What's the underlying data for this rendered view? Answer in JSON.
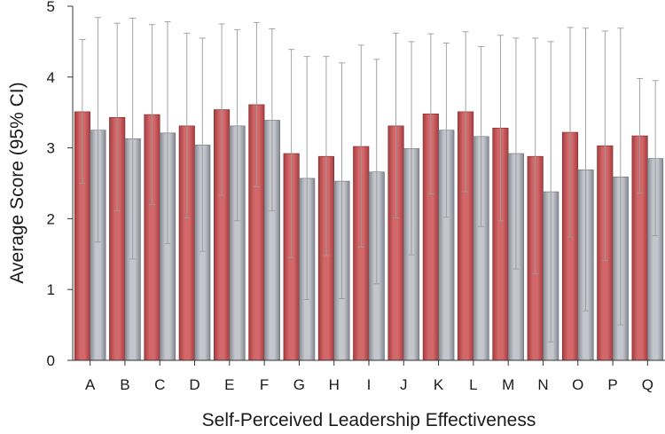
{
  "chart_data": {
    "type": "bar",
    "title": "",
    "xlabel": "Self-Perceived Leadership Effectiveness",
    "ylabel": "Average Score (95% CI)",
    "ylim": [
      0,
      5
    ],
    "yticks": [
      0,
      1,
      2,
      3,
      4,
      5
    ],
    "grid": false,
    "legend": "none",
    "error_bars": "95% CI",
    "categories": [
      "A",
      "B",
      "C",
      "D",
      "E",
      "F",
      "G",
      "H",
      "I",
      "J",
      "K",
      "L",
      "M",
      "N",
      "O",
      "P",
      "Q"
    ],
    "series": [
      {
        "color": "#c9585a",
        "values": [
          3.51,
          3.43,
          3.47,
          3.31,
          3.54,
          3.61,
          2.92,
          2.88,
          3.02,
          3.31,
          3.48,
          3.51,
          3.28,
          2.88,
          3.22,
          3.03,
          3.17
        ],
        "ci_low": [
          2.5,
          2.11,
          2.2,
          2.01,
          2.33,
          2.45,
          1.45,
          1.48,
          1.6,
          2.01,
          2.35,
          2.38,
          1.97,
          1.22,
          1.74,
          1.41,
          2.36
        ],
        "ci_high": [
          4.53,
          4.76,
          4.74,
          4.62,
          4.75,
          4.77,
          4.39,
          4.29,
          4.45,
          4.62,
          4.61,
          4.64,
          4.59,
          4.55,
          4.7,
          4.65,
          3.98
        ]
      },
      {
        "color": "#a7aab0",
        "values": [
          3.25,
          3.13,
          3.21,
          3.04,
          3.31,
          3.39,
          2.57,
          2.53,
          2.66,
          2.99,
          3.25,
          3.16,
          2.92,
          2.38,
          2.69,
          2.59,
          2.85
        ],
        "ci_low": [
          1.67,
          1.43,
          1.65,
          1.54,
          1.97,
          2.11,
          0.86,
          0.87,
          1.08,
          1.49,
          2.02,
          1.89,
          1.29,
          0.26,
          0.7,
          0.5,
          1.76
        ],
        "ci_high": [
          4.84,
          4.83,
          4.78,
          4.55,
          4.67,
          4.68,
          4.29,
          4.2,
          4.25,
          4.5,
          4.48,
          4.43,
          4.55,
          4.5,
          4.69,
          4.69,
          3.95
        ]
      }
    ]
  }
}
